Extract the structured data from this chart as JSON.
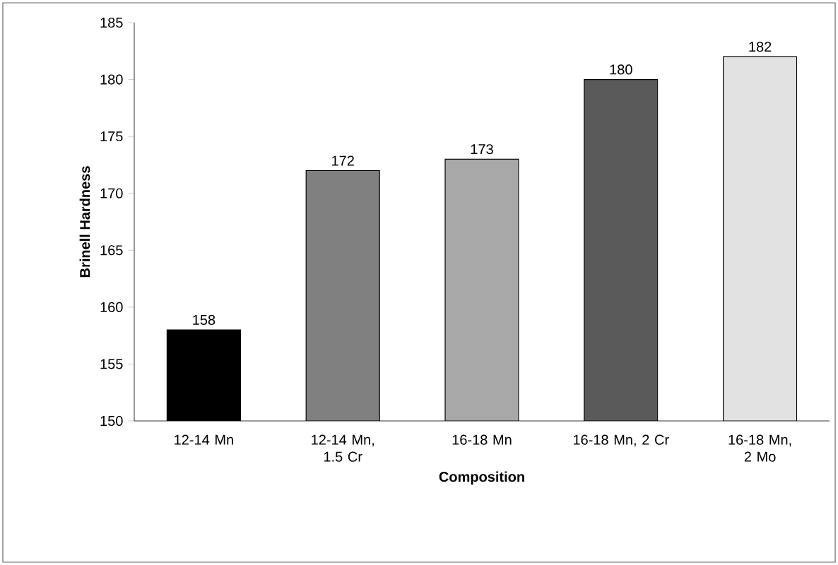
{
  "chart_data": {
    "type": "bar",
    "xlabel": "Composition",
    "ylabel": "Brinell Hardness",
    "categories": [
      "12-14 Mn",
      "12-14 Mn, 1.5 Cr",
      "16-18 Mn",
      "16-18 Mn, 2 Cr",
      "16-18 Mn, 2 Mo"
    ],
    "values": [
      158,
      172,
      173,
      180,
      182
    ],
    "colors": [
      "#000000",
      "#808080",
      "#a8a8a8",
      "#5a5a5a",
      "#e2e2e2"
    ],
    "ylim": [
      150,
      185
    ],
    "yticks": [
      150,
      155,
      160,
      165,
      170,
      175,
      180,
      185
    ],
    "data_labels": true,
    "grid": false
  }
}
